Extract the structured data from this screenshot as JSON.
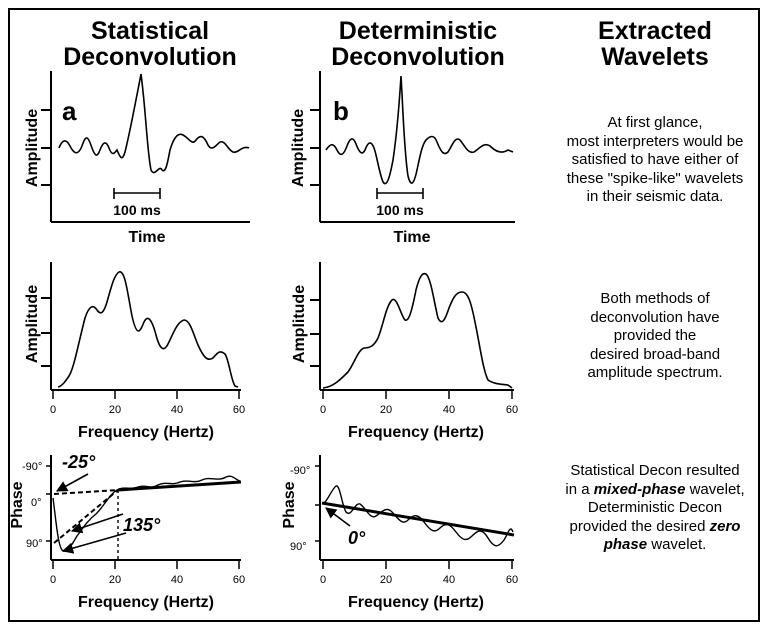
{
  "headers": {
    "col1": [
      "Statistical",
      "Deconvolution"
    ],
    "col2": [
      "Deterministic",
      "Deconvolution"
    ],
    "col3": [
      "Extracted",
      "Wavelets"
    ]
  },
  "panel_labels": {
    "a": "a",
    "b": "b"
  },
  "axis_labels": {
    "amplitude": "Amplitude",
    "time": "Time",
    "frequency": "Frequency (Hertz)",
    "phase": "Phase"
  },
  "scale_bar": "100 ms",
  "freq_ticks": [
    "0",
    "20",
    "40",
    "60"
  ],
  "phase_ticks": [
    "-90°",
    "0°",
    "90°"
  ],
  "annotations": {
    "neg25": "-25°",
    "a135": "135°",
    "zero": "0°"
  },
  "descriptions": {
    "row1": [
      "At first glance,",
      "most interpreters would be",
      "satisfied to have either of",
      "these \"spike-like\" wavelets",
      "in their seismic data."
    ],
    "row2": [
      "Both methods of",
      "deconvolution have",
      "provided the",
      "desired broad-band",
      "amplitude spectrum."
    ],
    "row3": {
      "l1": "Statistical Decon resulted",
      "l2a": "in a ",
      "l2b": "mixed-phase",
      "l2c": "  wavelet,",
      "l3": "Deterministic Decon",
      "l4a": "provided the desired ",
      "l4b": "zero",
      "l5a": "phase",
      "l5b": "  wavelet."
    }
  },
  "colors": {
    "ink": "#000000",
    "background": "#ffffff"
  }
}
